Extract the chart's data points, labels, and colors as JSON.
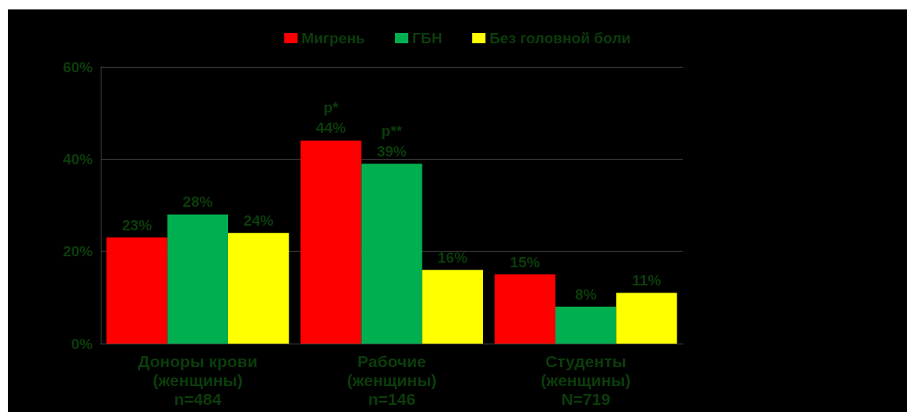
{
  "chart_data": {
    "type": "bar",
    "categories": [
      "Доноры крови\n(женщины)\nn=484",
      "Рабочие\n(женщины)\nn=146",
      "Студенты\n(женщины)\nN=719"
    ],
    "series": [
      {
        "name": "Мигрень",
        "color": "#ff0000",
        "values": [
          23,
          44,
          15
        ],
        "value_labels": [
          "23%",
          "p*\n44%",
          "15%"
        ]
      },
      {
        "name": "ГБН",
        "color": "#00b050",
        "values": [
          28,
          39,
          8
        ],
        "value_labels": [
          "28%",
          "p**\n39%",
          "8%"
        ]
      },
      {
        "name": "Без головной боли",
        "color": "#ffff00",
        "values": [
          24,
          16,
          11
        ],
        "value_labels": [
          "24%",
          "16%",
          "11%"
        ]
      }
    ],
    "ylim": [
      0,
      60
    ],
    "yticks": [
      {
        "value": 0,
        "label": "0%"
      },
      {
        "value": 20,
        "label": "20%"
      },
      {
        "value": 40,
        "label": "40%"
      },
      {
        "value": 60,
        "label": "60%"
      }
    ],
    "grid": "y",
    "legend": "top"
  }
}
